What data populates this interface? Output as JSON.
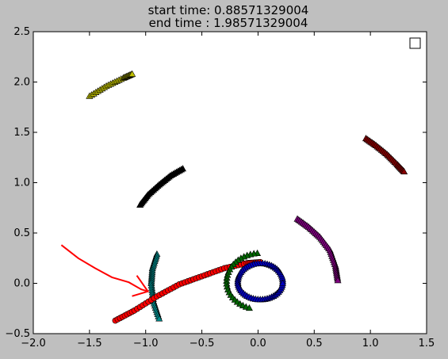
{
  "chart_data": {
    "type": "scatter",
    "title": "start time: 0.88571329004",
    "subtitle": "end time : 1.98571329004",
    "xlabel": "",
    "ylabel": "",
    "xlim": [
      -2.0,
      1.5
    ],
    "ylim": [
      -0.5,
      2.5
    ],
    "x_ticks": [
      "−2.0",
      "−1.5",
      "−1.0",
      "−0.5",
      "0.0",
      "0.5",
      "1.0",
      "1.5"
    ],
    "y_ticks": [
      "−0.5",
      "0.0",
      "0.5",
      "1.0",
      "1.5",
      "2.0",
      "2.5"
    ],
    "grid": false,
    "legend": {
      "placement": "top-right",
      "entries": []
    },
    "colors": {
      "background": "#bfbfbf",
      "plot_bg": "#ffffff",
      "annotation_arrow": "#ff0000"
    },
    "series": [
      {
        "color": "#c0c000",
        "marker": "triangle",
        "x": [
          -1.5,
          -1.35,
          -1.2,
          -1.12
        ],
        "y": [
          1.86,
          1.96,
          2.04,
          2.08
        ]
      },
      {
        "color": "#000000",
        "marker": "triangle",
        "x": [
          -1.05,
          -0.98,
          -0.88,
          -0.78,
          -0.67
        ],
        "y": [
          0.78,
          0.88,
          0.98,
          1.07,
          1.14
        ]
      },
      {
        "color": "#8b0000",
        "marker": "triangle",
        "x": [
          0.96,
          1.05,
          1.15,
          1.24,
          1.3
        ],
        "y": [
          1.44,
          1.37,
          1.28,
          1.18,
          1.11
        ]
      },
      {
        "color": "#800080",
        "marker": "triangle",
        "x": [
          0.35,
          0.45,
          0.55,
          0.64,
          0.69,
          0.71
        ],
        "y": [
          0.64,
          0.56,
          0.46,
          0.33,
          0.17,
          0.03
        ]
      },
      {
        "color": "#008b8b",
        "marker": "triangle",
        "x": [
          -0.9,
          -0.94,
          -0.95,
          -0.93,
          -0.88
        ],
        "y": [
          0.29,
          0.15,
          0.0,
          -0.18,
          -0.35
        ]
      },
      {
        "color": "#ff0000",
        "marker": "circle",
        "x": [
          -1.27,
          -1.1,
          -0.9,
          -0.7,
          -0.5,
          -0.3,
          -0.1,
          0.02
        ],
        "y": [
          -0.37,
          -0.27,
          -0.13,
          -0.01,
          0.07,
          0.15,
          0.2,
          0.21
        ]
      },
      {
        "color": "#0000c0",
        "marker": "triangle",
        "circle": {
          "cx": 0.02,
          "cy": 0.02,
          "rx": 0.2,
          "ry": 0.18
        }
      },
      {
        "color": "#006400",
        "marker": "triangle",
        "arc": {
          "cx": 0.02,
          "cy": 0.02,
          "rx": 0.3,
          "ry": 0.28,
          "from_deg": 95,
          "to_deg": -105
        }
      }
    ],
    "annotation": {
      "type": "arrow",
      "path": [
        [
          -1.75,
          0.38
        ],
        [
          -1.6,
          0.25
        ],
        [
          -1.45,
          0.15
        ],
        [
          -1.3,
          0.06
        ],
        [
          -1.15,
          0.01
        ],
        [
          -1.04,
          -0.06
        ]
      ],
      "head_to": [
        -0.98,
        -0.08
      ]
    }
  }
}
